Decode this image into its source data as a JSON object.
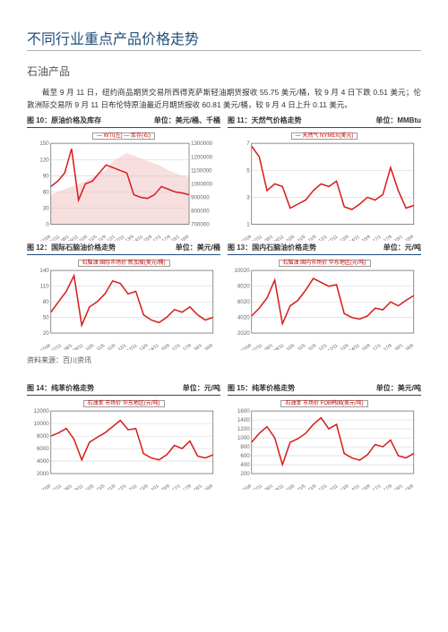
{
  "title": "不同行业重点产品价格走势",
  "subtitle": "石油产品",
  "paragraphs": [
    "截至 9 月 11 日，纽约商品期货交易所西得克萨斯轻油期货报收 55.75 美元/桶，较 9 月 4 日下跌 0.51 美元；伦敦洲际交易所 9 月 11 日布伦特原油最近月期货报收 60.81 美元/桶，较 9 月 4 日上升 0.11 美元。"
  ],
  "source": "资料来源：百川资讯",
  "colors": {
    "accent": "#1f4e79",
    "line1": "#d81e1e",
    "area1": "#f2c4c4",
    "grid": "#d0d0d0",
    "axis": "#666666",
    "bg": "#ffffff"
  },
  "x_labels": [
    "07/09",
    "07/11",
    "08/1",
    "08/11",
    "10/5",
    "11/5",
    "11/9",
    "12/1",
    "12/11",
    "13/9",
    "14/11",
    "15/9",
    "17/1",
    "17/9",
    "18/1",
    "18/9"
  ],
  "charts": [
    {
      "id": "c10",
      "caption": "图 10：原油价格及库存",
      "unit": "单位：美元/桶、千桶",
      "legend": "— WTI(左)  — 库存(右)",
      "type": "line+area",
      "ylim": [
        0,
        150
      ],
      "yticks": [
        0,
        30,
        60,
        90,
        120,
        150
      ],
      "ylim2": [
        700000,
        1300000
      ],
      "yticks2": [
        700000,
        800000,
        900000,
        1000000,
        1100000,
        1200000,
        1300000
      ],
      "line": [
        70,
        80,
        95,
        140,
        45,
        75,
        80,
        95,
        110,
        105,
        100,
        95,
        55,
        50,
        48,
        55,
        70,
        65,
        60,
        58,
        55
      ],
      "area": [
        920000,
        940000,
        960000,
        980000,
        1000000,
        1020000,
        1050000,
        1080000,
        1100000,
        1170000,
        1200000,
        1230000,
        1210000,
        1190000,
        1170000,
        1150000,
        1130000,
        1100000,
        1080000,
        1060000,
        1050000
      ],
      "line_color": "#d81e1e",
      "area_color": "#f2c4c4"
    },
    {
      "id": "c11",
      "caption": "图 11：天然气价格走势",
      "unit": "单位：MMBtu",
      "legend": "— 天然气 NYMEX(美元)",
      "type": "line",
      "ylim": [
        1,
        7
      ],
      "yticks": [
        1,
        3,
        5,
        7
      ],
      "line": [
        6.8,
        6,
        3.5,
        4,
        3.8,
        2.2,
        2.5,
        2.8,
        3.5,
        4,
        3.8,
        4.2,
        2.3,
        2.1,
        2.5,
        3,
        2.8,
        3.2,
        5.2,
        3.5,
        2.2,
        2.4
      ],
      "line_color": "#d81e1e"
    },
    {
      "id": "c12",
      "caption": "图 12：国际石脑油价格走势",
      "unit": "单位：美元/桶",
      "legend": "石脑油 国际市场价 新加坡(美元/桶)",
      "type": "line",
      "ylim": [
        20,
        140
      ],
      "yticks": [
        20,
        50,
        80,
        110,
        140
      ],
      "line": [
        60,
        80,
        100,
        130,
        35,
        70,
        80,
        95,
        120,
        115,
        95,
        100,
        55,
        45,
        40,
        50,
        65,
        60,
        70,
        55,
        45,
        50
      ],
      "line_color": "#d81e1e"
    },
    {
      "id": "c13",
      "caption": "图 13：国内石脑油价格走势",
      "unit": "单位：元/吨",
      "legend": "石脑油 国内市场价 华东地区(元/吨)",
      "type": "line",
      "ylim": [
        2020,
        10020
      ],
      "yticks": [
        2020,
        4020,
        6020,
        8020,
        10020
      ],
      "line": [
        4200,
        5200,
        6500,
        8800,
        3200,
        5500,
        6200,
        7500,
        9000,
        8500,
        8000,
        8200,
        4500,
        4000,
        3800,
        4200,
        5200,
        5000,
        6000,
        5500,
        6200,
        6800
      ],
      "line_color": "#d81e1e"
    },
    {
      "id": "c14",
      "caption": "图 14：纯苯价格走势",
      "unit": "单位：元/吨",
      "legend": "石油苯 市场价 华东地区(元/吨)",
      "type": "line",
      "ylim": [
        2000,
        12000
      ],
      "yticks": [
        2000,
        4000,
        6000,
        8000,
        10000,
        12000
      ],
      "line": [
        8000,
        8500,
        9200,
        7500,
        4200,
        7000,
        7800,
        8500,
        9500,
        10500,
        9000,
        9200,
        5200,
        4500,
        4200,
        5000,
        6500,
        6000,
        7200,
        4800,
        4500,
        5000
      ],
      "line_color": "#d81e1e"
    },
    {
      "id": "c15",
      "caption": "图 15：纯苯价格走势",
      "unit": "单位：美元/吨",
      "legend": "石油苯 市场价 FOB韩国(美元/吨)",
      "type": "line",
      "ylim": [
        200,
        1600
      ],
      "yticks": [
        200,
        400,
        600,
        800,
        1000,
        1200,
        1400,
        1600
      ],
      "line": [
        900,
        1100,
        1250,
        1000,
        400,
        900,
        980,
        1100,
        1300,
        1450,
        1200,
        1300,
        650,
        550,
        500,
        620,
        850,
        800,
        950,
        600,
        550,
        650
      ],
      "line_color": "#d81e1e"
    }
  ]
}
